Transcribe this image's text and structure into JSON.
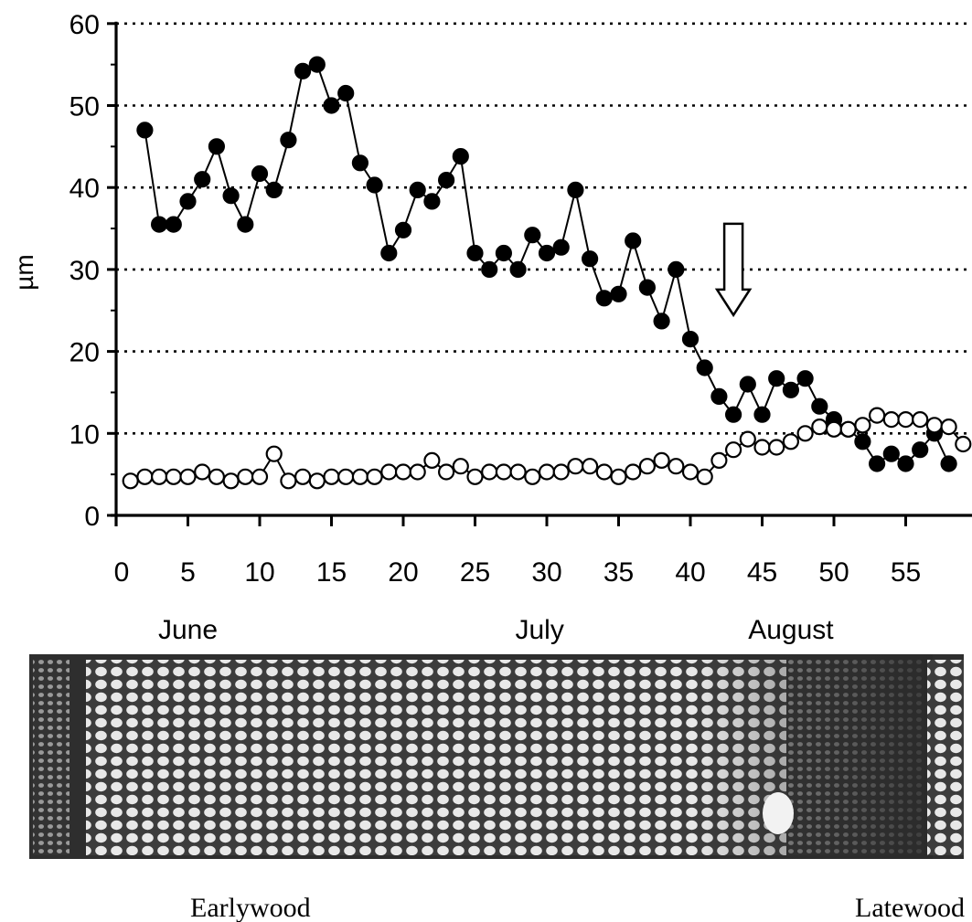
{
  "chart_data": {
    "type": "line",
    "title": "",
    "xlabel": "",
    "ylabel": "µm",
    "xlim": [
      0,
      59
    ],
    "ylim": [
      0,
      60
    ],
    "x_ticks": [
      "0",
      "5",
      "10",
      "15",
      "20",
      "25",
      "30",
      "35",
      "40",
      "45",
      "50",
      "55"
    ],
    "y_ticks": [
      "0",
      "10",
      "20",
      "30",
      "40",
      "50",
      "60"
    ],
    "grid": "horizontal dotted",
    "series": [
      {
        "marker": "filled-circle",
        "x": [
          2,
          3,
          4,
          5,
          6,
          7,
          8,
          9,
          10,
          11,
          12,
          13,
          14,
          15,
          16,
          17,
          18,
          19,
          20,
          21,
          22,
          23,
          24,
          25,
          26,
          27,
          28,
          29,
          30,
          31,
          32,
          33,
          34,
          35,
          36,
          37,
          38,
          39,
          40,
          41,
          42,
          43,
          44,
          45,
          46,
          47,
          48,
          49,
          50,
          51,
          52,
          53,
          54,
          55,
          56,
          57,
          58
        ],
        "y": [
          47,
          35.5,
          35.5,
          38.3,
          41,
          45,
          39,
          35.5,
          41.7,
          39.7,
          45.8,
          54.2,
          55,
          50,
          51.5,
          43,
          40.3,
          32,
          34.8,
          39.7,
          38.3,
          40.9,
          43.8,
          32,
          30,
          32,
          30,
          34.2,
          32,
          32.7,
          39.7,
          31.3,
          26.5,
          27,
          33.5,
          27.8,
          23.7,
          30,
          21.5,
          18,
          14.5,
          12.3,
          16,
          12.3,
          16.7,
          15.3,
          16.7,
          13.3,
          11.7,
          10.5,
          9,
          6.3,
          7.5,
          6.3,
          8,
          10,
          6.3
        ]
      },
      {
        "marker": "open-circle",
        "x": [
          1,
          2,
          3,
          4,
          5,
          6,
          7,
          8,
          9,
          10,
          11,
          12,
          13,
          14,
          15,
          16,
          17,
          18,
          19,
          20,
          21,
          22,
          23,
          24,
          25,
          26,
          27,
          28,
          29,
          30,
          31,
          32,
          33,
          34,
          35,
          36,
          37,
          38,
          39,
          40,
          41,
          42,
          43,
          44,
          45,
          46,
          47,
          48,
          49,
          50,
          51,
          52,
          53,
          54,
          55,
          56,
          57,
          58,
          59
        ],
        "y": [
          4.2,
          4.7,
          4.7,
          4.7,
          4.7,
          5.3,
          4.7,
          4.2,
          4.7,
          4.7,
          7.5,
          4.2,
          4.7,
          4.2,
          4.7,
          4.7,
          4.7,
          4.7,
          5.3,
          5.3,
          5.3,
          6.7,
          5.3,
          6,
          4.7,
          5.3,
          5.3,
          5.3,
          4.7,
          5.3,
          5.3,
          6,
          6,
          5.3,
          4.7,
          5.3,
          6,
          6.7,
          6,
          5.3,
          4.7,
          6.7,
          8,
          9.3,
          8.3,
          8.3,
          9,
          10,
          10.8,
          10.5,
          10.5,
          11,
          12.2,
          11.7,
          11.7,
          11.7,
          11,
          10.8,
          8.7
        ]
      }
    ],
    "annotations": [
      {
        "type": "hollow-down-arrow",
        "x": 43,
        "y": 28
      }
    ],
    "month_labels": [
      {
        "text": "June",
        "at_x": 5
      },
      {
        "text": "July",
        "at_x": 29.5
      },
      {
        "text": "August",
        "at_x": 47
      }
    ]
  },
  "micrograph": {
    "left_label": "Earlywood",
    "right_label": "Latewood"
  }
}
